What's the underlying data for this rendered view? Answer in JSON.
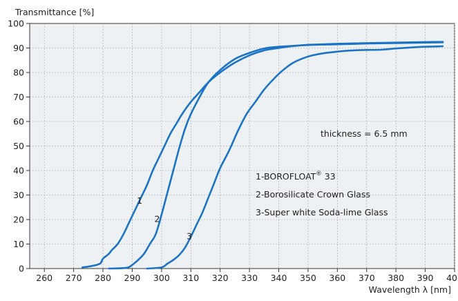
{
  "chart_data": {
    "type": "line",
    "title": "",
    "ylabel": "Transmittance [%]",
    "xlabel": "Wavelength λ [nm]",
    "xlim": [
      255,
      400
    ],
    "ylim": [
      0,
      100
    ],
    "x_ticks": [
      260,
      270,
      280,
      290,
      300,
      310,
      320,
      330,
      340,
      350,
      360,
      370,
      380,
      390,
      400
    ],
    "y_ticks": [
      0,
      10,
      20,
      30,
      40,
      50,
      60,
      70,
      80,
      90,
      100
    ],
    "grid": true,
    "line_color": "#1a73c4",
    "series": [
      {
        "label_number": "1",
        "label_pos": [
          292.5,
          26.5
        ],
        "x": [
          273,
          276,
          279,
          280,
          282,
          283,
          285,
          287,
          289,
          291,
          293,
          295,
          297,
          299,
          301,
          303,
          305,
          307,
          310,
          313,
          316,
          320,
          325,
          330,
          335,
          340,
          345,
          350,
          355,
          360,
          370,
          380,
          390,
          396
        ],
        "values": [
          0.5,
          1,
          2,
          4,
          6,
          7.5,
          10,
          14,
          19,
          24,
          29,
          34,
          40,
          45,
          50,
          55,
          59,
          63,
          68,
          72,
          76,
          80,
          84,
          87,
          89,
          90,
          90.8,
          91.3,
          91.5,
          91.7,
          92,
          92.2,
          92.4,
          92.5
        ]
      },
      {
        "label_number": "2",
        "label_pos": [
          298.5,
          19
        ],
        "x": [
          282,
          288,
          290,
          292,
          294,
          296,
          298,
          300,
          302,
          304,
          306,
          308,
          310,
          313,
          316,
          320,
          325,
          330,
          335,
          340,
          350,
          360,
          370,
          380,
          390,
          396
        ],
        "values": [
          0,
          0.3,
          1.5,
          3.5,
          6,
          10,
          14,
          22,
          31,
          40,
          49,
          57,
          63,
          70,
          76,
          81,
          85.5,
          88,
          89.8,
          90.5,
          91.2,
          91.5,
          91.8,
          92,
          92.2,
          92.3
        ]
      },
      {
        "label_number": "3",
        "label_pos": [
          309.5,
          12
        ],
        "x": [
          295,
          300,
          302,
          304,
          306,
          308,
          310,
          312,
          314,
          316,
          318,
          320,
          323,
          326,
          329,
          332,
          335,
          338,
          341,
          345,
          350,
          355,
          360,
          365,
          370,
          375,
          380,
          385,
          390,
          396
        ],
        "values": [
          0,
          0.5,
          2,
          3.5,
          5.5,
          8.5,
          13,
          18,
          23,
          29,
          35,
          41,
          48,
          56,
          63,
          68,
          73,
          77,
          80.5,
          84,
          86.5,
          87.8,
          88.5,
          89,
          89.2,
          89.3,
          89.8,
          90.2,
          90.5,
          90.7
        ]
      }
    ],
    "annotations": {
      "thickness": "thickness = 6.5 mm",
      "legend_1_prefix": "1-BOROFLOAT",
      "legend_1_sup": "®",
      "legend_1_suffix": " 33",
      "legend_2": "2-Borosilicate Crown Glass",
      "legend_3": "3-Super white Soda-lime Glass"
    }
  }
}
